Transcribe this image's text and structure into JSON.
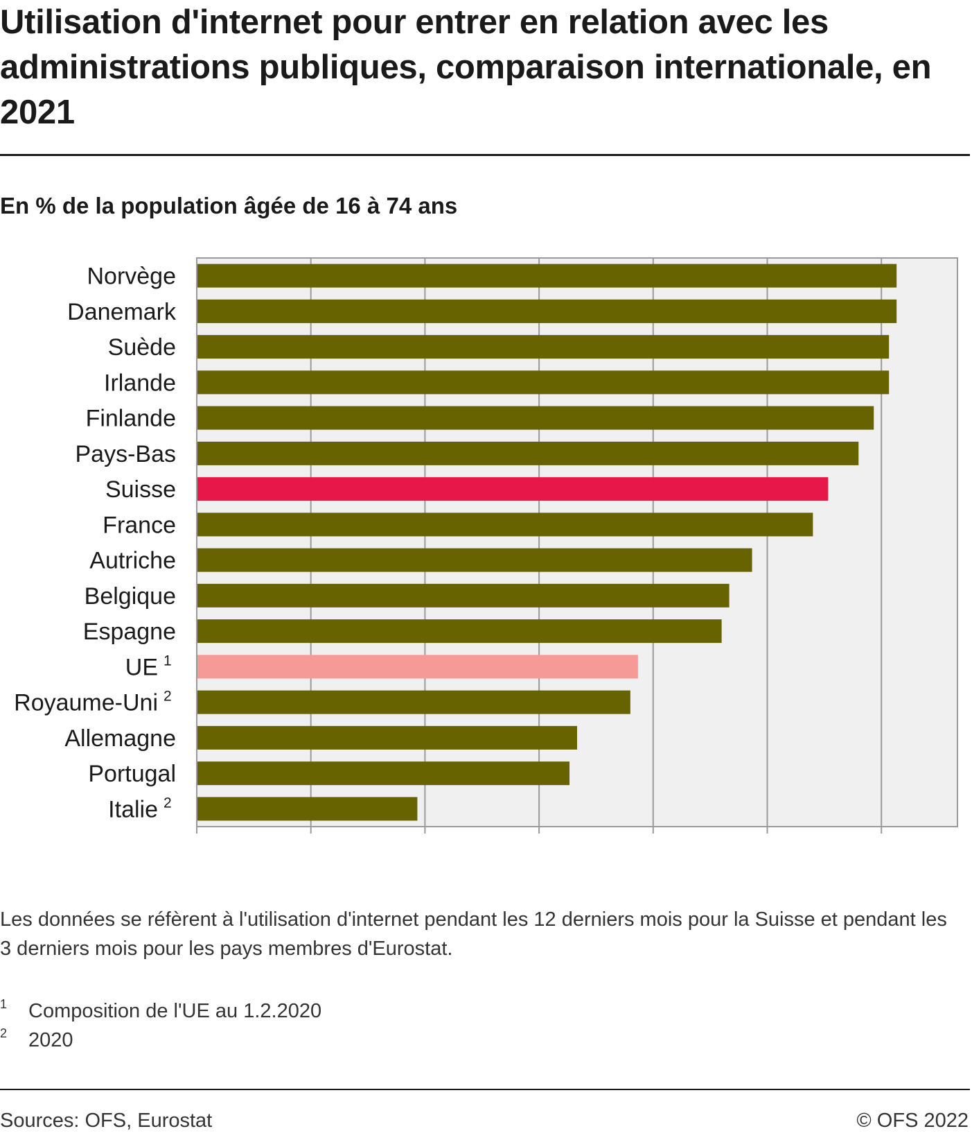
{
  "title": "Utilisation d'internet pour entrer en relation avec les administrations publiques, comparaison internationale, en 2021",
  "subtitle": "En % de la population âgée de 16 à 74 ans",
  "chart_data": {
    "type": "bar",
    "orientation": "horizontal",
    "categories": [
      "Norvège",
      "Danemark",
      "Suède",
      "Irlande",
      "Finlande",
      "Pays-Bas",
      "Suisse",
      "France",
      "Autriche",
      "Belgique",
      "Espagne",
      "UE",
      "Royaume-Uni",
      "Allemagne",
      "Portugal",
      "Italie"
    ],
    "footnote_marks": [
      "",
      "",
      "",
      "",
      "",
      "",
      "",
      "",
      "",
      "",
      "",
      "1",
      "2",
      "",
      "",
      "2"
    ],
    "values": [
      92,
      92,
      91,
      91,
      89,
      87,
      83,
      81,
      73,
      70,
      69,
      58,
      57,
      50,
      49,
      29
    ],
    "highlight": {
      "Suisse": "#e8174a",
      "UE": "#f59a96"
    },
    "bar_color": "#676300",
    "xlim": [
      0,
      100
    ],
    "xticks": [
      0,
      15,
      30,
      45,
      60,
      75,
      90
    ],
    "grid": true,
    "background": "#f0f0f0"
  },
  "note": "Les données se réfèrent à l'utilisation d'internet pendant les 12 derniers mois pour la Suisse et pendant les 3 derniers mois pour les pays membres d'Eurostat.",
  "footnotes": [
    {
      "mark": "1",
      "text": "Composition de l'UE au 1.2.2020"
    },
    {
      "mark": "2",
      "text": "2020"
    }
  ],
  "source": "Sources: OFS, Eurostat",
  "copyright": "© OFS 2022"
}
